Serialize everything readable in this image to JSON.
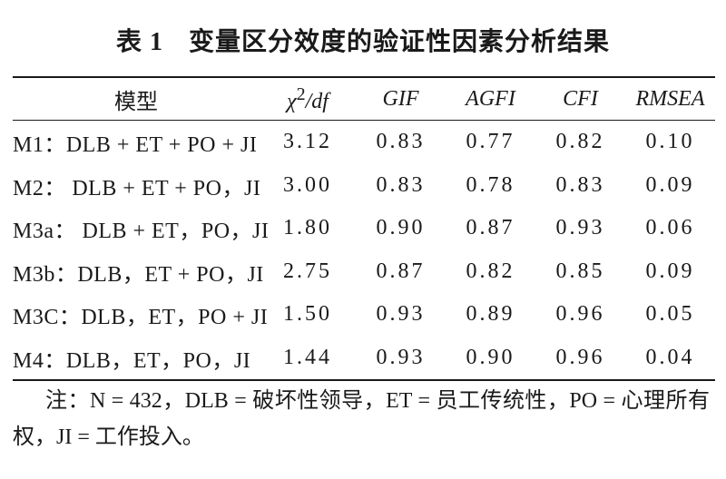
{
  "title": {
    "label": "表 1",
    "text": "变量区分效度的验证性因素分析结果"
  },
  "table": {
    "headers": {
      "model": "模型",
      "chi_symbol": "χ",
      "chi_sup": "2",
      "chi_rest": "/df",
      "gif": "GIF",
      "agfi": "AGFI",
      "cfi": "CFI",
      "rmsea": "RMSEA"
    },
    "rows": [
      {
        "model": "M1：DLB + ET + PO + JI",
        "chi": "3.12",
        "gif": "0.83",
        "agfi": "0.77",
        "cfi": "0.82",
        "rmsea": "0.10"
      },
      {
        "model": "M2： DLB + ET  + PO，JI",
        "chi": "3.00",
        "gif": "0.83",
        "agfi": "0.78",
        "cfi": "0.83",
        "rmsea": "0.09"
      },
      {
        "model": "M3a： DLB + ET，PO，JI",
        "chi": "1.80",
        "gif": "0.90",
        "agfi": "0.87",
        "cfi": "0.93",
        "rmsea": "0.06"
      },
      {
        "model": "M3b：DLB，ET + PO，JI",
        "chi": "2.75",
        "gif": "0.87",
        "agfi": "0.82",
        "cfi": "0.85",
        "rmsea": "0.09"
      },
      {
        "model": "M3C：DLB，ET，PO  + JI",
        "chi": "1.50",
        "gif": "0.93",
        "agfi": "0.89",
        "cfi": "0.96",
        "rmsea": "0.05"
      },
      {
        "model": "M4：DLB，ET，PO，JI",
        "chi": "1.44",
        "gif": "0.93",
        "agfi": "0.90",
        "cfi": "0.96",
        "rmsea": "0.04"
      }
    ]
  },
  "note": "注：N = 432，DLB = 破坏性领导，ET = 员工传统性，PO = 心理所有权，JI = 工作投入。"
}
